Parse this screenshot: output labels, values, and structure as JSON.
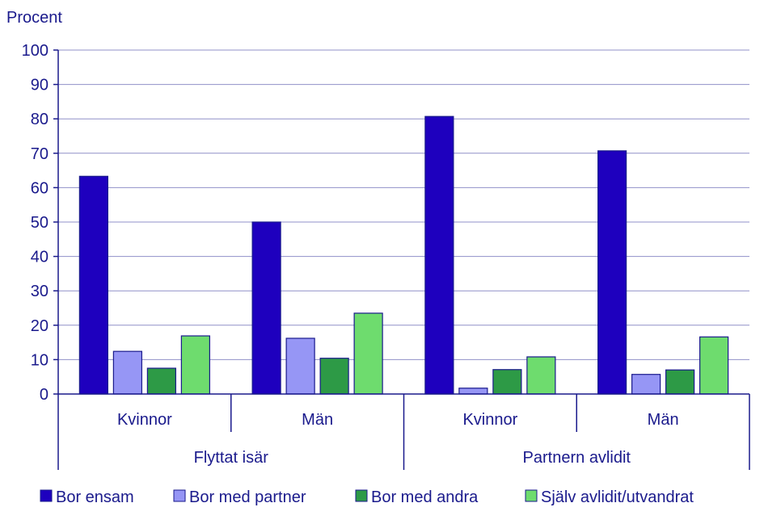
{
  "chart_data": {
    "type": "bar",
    "ylabel": "Procent",
    "ylim": [
      0,
      100
    ],
    "yticks": [
      0,
      10,
      20,
      30,
      40,
      50,
      60,
      70,
      80,
      90,
      100
    ],
    "grid": true,
    "legend_position": "bottom",
    "groups": [
      {
        "label": "Flyttat isär",
        "categories": [
          "Kvinnor",
          "Män"
        ]
      },
      {
        "label": "Partnern avlidit",
        "categories": [
          "Kvinnor",
          "Män"
        ]
      }
    ],
    "series": [
      {
        "name": "Bor ensam",
        "color": "#1e00be",
        "values": [
          63.3,
          50.0,
          80.7,
          70.7
        ]
      },
      {
        "name": "Bor med partner",
        "color": "#9696f5",
        "values": [
          12.4,
          16.2,
          1.7,
          5.7
        ]
      },
      {
        "name": "Bor med andra",
        "color": "#2d9a46",
        "values": [
          7.5,
          10.4,
          7.1,
          7.0
        ]
      },
      {
        "name": "Själv avlidit/utvandrat",
        "color": "#6edc6e",
        "values": [
          16.9,
          23.5,
          10.8,
          16.6
        ]
      }
    ],
    "colors": {
      "axis": "#1a1a8c",
      "grid": "#9090c8",
      "bar_outline": "#1a1a8c"
    }
  }
}
